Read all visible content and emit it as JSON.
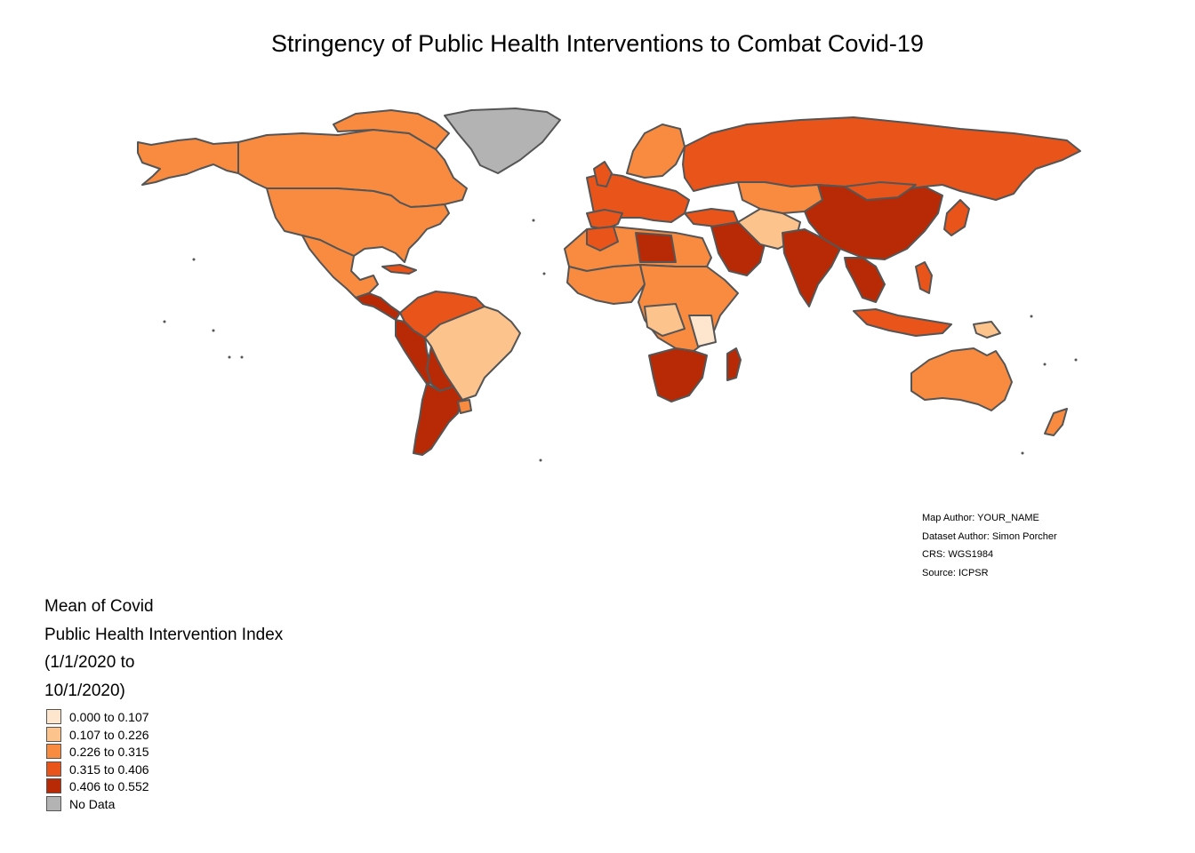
{
  "title": "Stringency of Public Health Interventions to Combat Covid-19",
  "colors": {
    "class_1": "#fee6ce",
    "class_2": "#fdc38c",
    "class_3": "#f98b40",
    "class_4": "#e8541a",
    "class_5": "#b72a05",
    "no_data": "#b3b3b3",
    "border": "#555555",
    "background": "#ffffff"
  },
  "credits": [
    "Map Author: YOUR_NAME",
    "Dataset Author: Simon Porcher",
    "CRS: WGS1984",
    "Source: ICPSR"
  ],
  "legend": {
    "title_lines": [
      "Mean of Covid",
      "Public Health Intervention Index",
      "(1/1/2020 to",
      "10/1/2020)"
    ],
    "items": [
      {
        "label": "0.000 to 0.107",
        "color": "#fee6ce"
      },
      {
        "label": "0.107 to 0.226",
        "color": "#fdc38c"
      },
      {
        "label": "0.226 to 0.315",
        "color": "#f98b40"
      },
      {
        "label": "0.315 to 0.406",
        "color": "#e8541a"
      },
      {
        "label": "0.406 to 0.552",
        "color": "#b72a05"
      },
      {
        "label": "No Data",
        "color": "#b3b3b3"
      }
    ]
  }
}
